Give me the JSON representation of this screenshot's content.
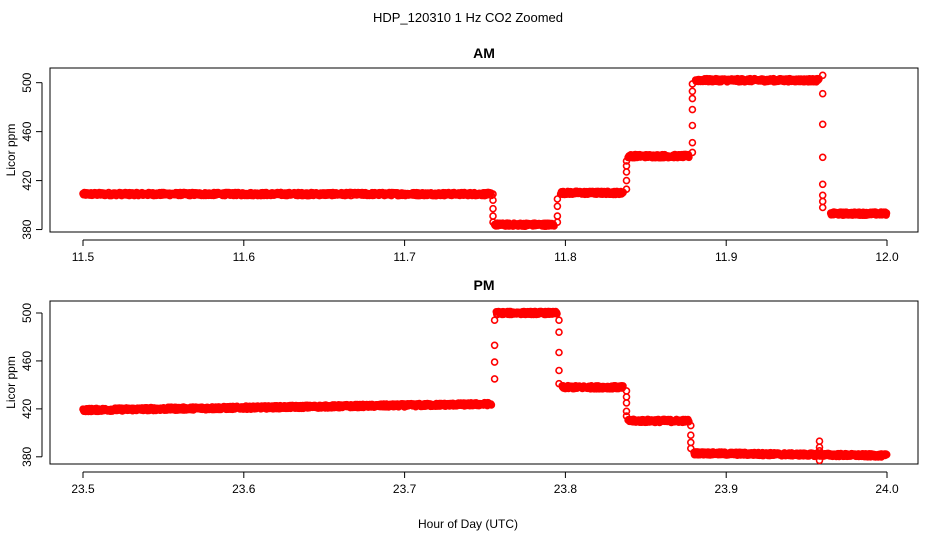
{
  "figure": {
    "title": "HDP_120310  1 Hz CO2 Zoomed",
    "xlabel": "Hour of Day (UTC)"
  },
  "chart_data": [
    {
      "type": "scatter",
      "title": "AM",
      "xlabel": "Hour of Day (UTC)",
      "ylabel": "Licor ppm",
      "xlim": [
        11.5,
        12.0
      ],
      "ylim": [
        378,
        512
      ],
      "xticks": [
        "11.5",
        "11.6",
        "11.7",
        "11.8",
        "11.9",
        "12.0"
      ],
      "xtick_values": [
        11.5,
        11.6,
        11.7,
        11.8,
        11.9,
        12.0
      ],
      "yticks": [
        "380",
        "420",
        "460",
        "500"
      ],
      "ytick_values": [
        380,
        420,
        460,
        500
      ],
      "marker": "open-circle",
      "color": "#ff0000",
      "segments": [
        {
          "x0": 11.5,
          "x1": 11.754,
          "y": 409
        },
        {
          "x0": 11.756,
          "x1": 11.793,
          "y": 384
        },
        {
          "x0": 11.797,
          "x1": 11.836,
          "y": 410
        },
        {
          "x0": 11.839,
          "x1": 11.877,
          "y": 440
        },
        {
          "x0": 11.881,
          "x1": 11.958,
          "y": 502
        },
        {
          "x0": 11.965,
          "x1": 12.0,
          "y": 393
        }
      ],
      "transitions": [
        {
          "x": 11.755,
          "y": [
            409,
            404,
            397,
            391,
            386
          ]
        },
        {
          "x": 11.795,
          "y": [
            386,
            391,
            399,
            405
          ]
        },
        {
          "x": 11.838,
          "y": [
            413,
            420,
            427,
            432,
            436
          ]
        },
        {
          "x": 11.879,
          "y": [
            443,
            451,
            465,
            478,
            487,
            493,
            499
          ]
        },
        {
          "x": 11.96,
          "y": [
            506,
            491,
            466,
            439,
            417,
            408,
            403,
            398
          ]
        }
      ]
    },
    {
      "type": "scatter",
      "title": "PM",
      "xlabel": "Hour of Day (UTC)",
      "ylabel": "Licor ppm",
      "xlim": [
        23.5,
        24.0
      ],
      "ylim": [
        374,
        510
      ],
      "xticks": [
        "23.5",
        "23.6",
        "23.7",
        "23.8",
        "23.9",
        "24.0"
      ],
      "xtick_values": [
        23.5,
        23.6,
        23.7,
        23.8,
        23.9,
        24.0
      ],
      "yticks": [
        "380",
        "420",
        "460",
        "500"
      ],
      "ytick_values": [
        380,
        420,
        460,
        500
      ],
      "marker": "open-circle",
      "color": "#ff0000",
      "segments": [
        {
          "x0": 23.5,
          "x1": 23.754,
          "y0": 419,
          "y1": 424
        },
        {
          "x0": 23.757,
          "x1": 23.795,
          "y0": 500,
          "y1": 500
        },
        {
          "x0": 23.798,
          "x1": 23.836,
          "y0": 438,
          "y1": 438
        },
        {
          "x0": 23.839,
          "x1": 23.877,
          "y0": 410,
          "y1": 410
        },
        {
          "x0": 23.88,
          "x1": 24.0,
          "y0": 383,
          "y1": 381
        }
      ],
      "transitions": [
        {
          "x": 23.756,
          "y": [
            445,
            459,
            473,
            494
          ]
        },
        {
          "x": 23.796,
          "y": [
            494,
            484,
            467,
            452,
            441
          ]
        },
        {
          "x": 23.838,
          "y": [
            435,
            430,
            425,
            418,
            414
          ]
        },
        {
          "x": 23.878,
          "y": [
            406,
            398,
            392,
            387
          ]
        },
        {
          "x": 23.958,
          "y": [
            393,
            388,
            385,
            382,
            377
          ]
        }
      ]
    }
  ]
}
